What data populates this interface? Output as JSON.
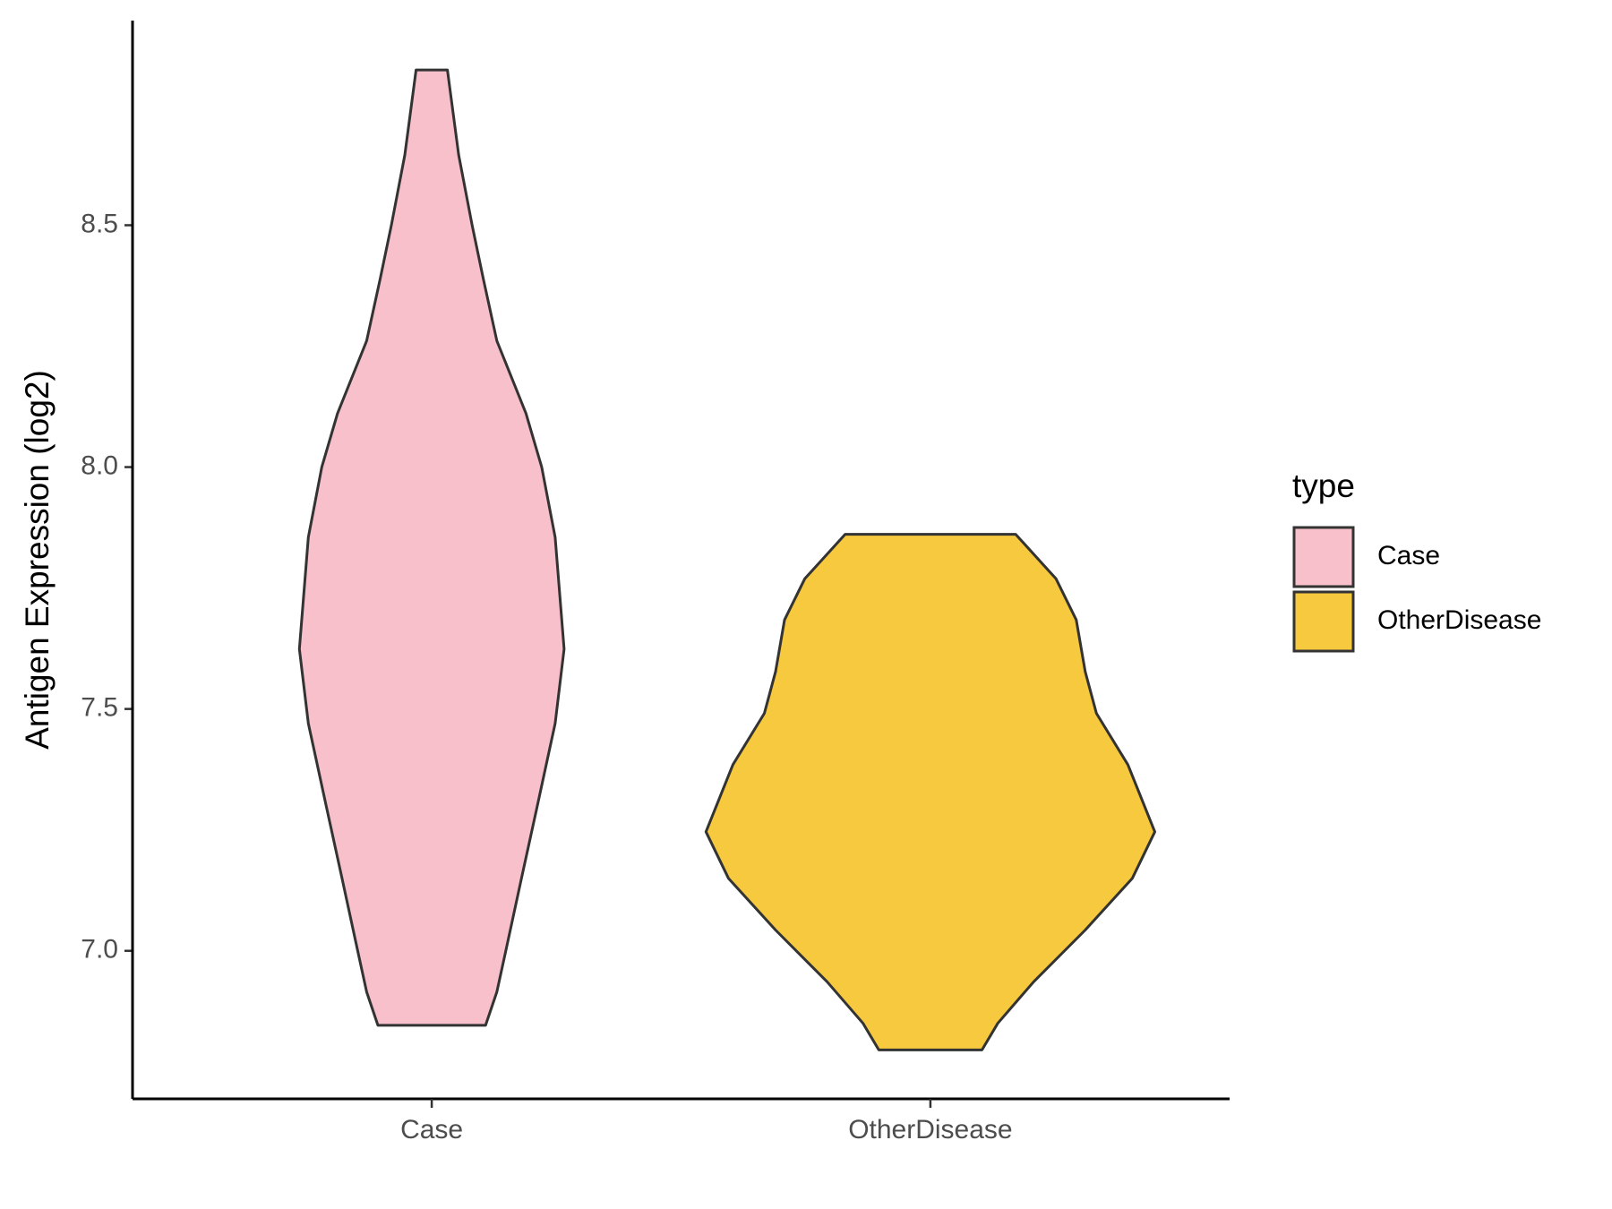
{
  "chart_data": {
    "type": "violin",
    "y_label": "Antigen Expression (log2)",
    "categories": [
      "Case",
      "OtherDisease"
    ],
    "legend_title": "type",
    "legend_position": "right",
    "ylim": [
      6.694,
      8.923
    ],
    "yticks": [
      {
        "value": 7,
        "label": "7.0"
      },
      7.5,
      {
        "value": 8,
        "label": "8.0"
      },
      8.5
    ],
    "grid": false,
    "series": [
      {
        "name": "Case",
        "color": "#f7c0cb",
        "y": [
          8.821,
          8.645,
          8.5,
          8.389,
          8.261,
          8.111,
          8.0,
          7.855,
          7.624,
          7.47,
          7.299,
          7.15,
          7.0,
          6.915,
          6.846
        ],
        "density": [
          0.07,
          0.12,
          0.18,
          0.23,
          0.29,
          0.42,
          0.49,
          0.55,
          0.59,
          0.55,
          0.47,
          0.4,
          0.33,
          0.29,
          0.24
        ]
      },
      {
        "name": "OtherDisease",
        "color": "#f6c93f",
        "y": [
          7.861,
          7.769,
          7.684,
          7.577,
          7.491,
          7.385,
          7.246,
          7.15,
          7.043,
          6.936,
          6.85,
          6.795
        ],
        "density": [
          0.38,
          0.56,
          0.65,
          0.69,
          0.74,
          0.88,
          1.0,
          0.9,
          0.69,
          0.46,
          0.3,
          0.23
        ]
      }
    ]
  }
}
